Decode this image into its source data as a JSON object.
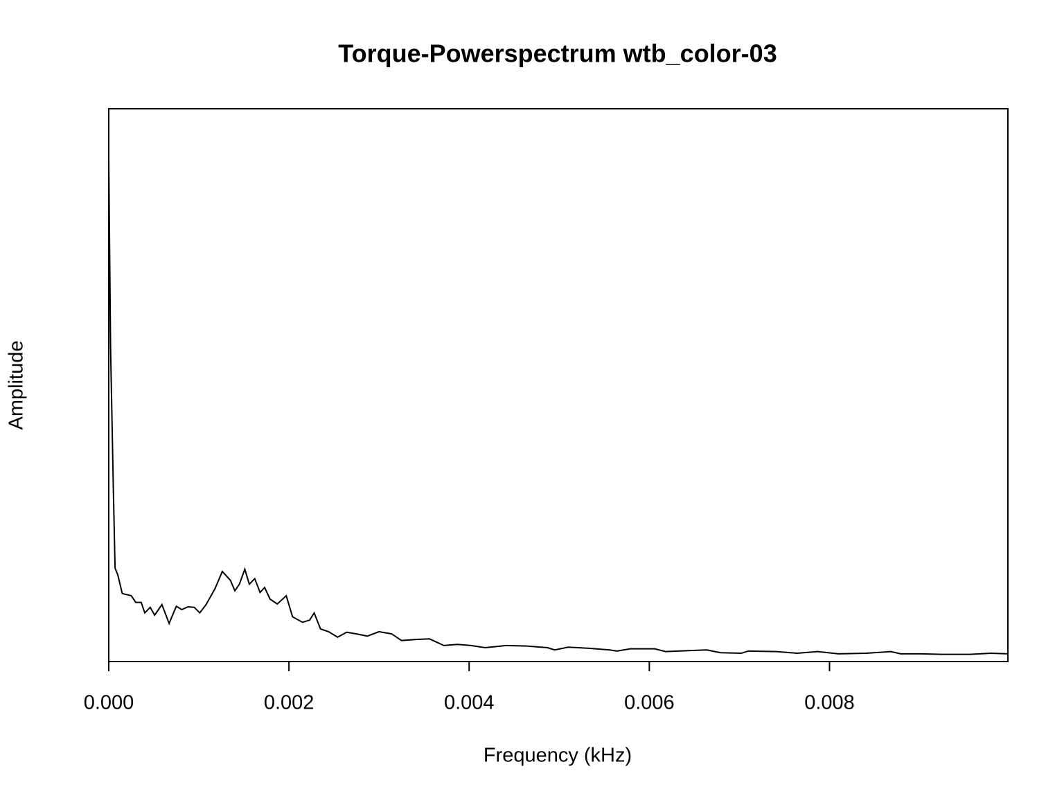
{
  "chart_data": {
    "type": "line",
    "title": "Torque-Powerspectrum wtb_color-03",
    "x_label": "Frequency (kHz)",
    "y_label": "Amplitude",
    "xlim": [
      0,
      0.00998
    ],
    "ylim": [
      0,
      1
    ],
    "xticks": [
      {
        "value": 0,
        "label": "0.000"
      },
      {
        "value": 0.002,
        "label": "0.002"
      },
      {
        "value": 0.004,
        "label": "0.004"
      },
      {
        "value": 0.006,
        "label": "0.006"
      },
      {
        "value": 0.008,
        "label": "0.008"
      }
    ],
    "series": [
      {
        "color": "#000000",
        "x": [
          0,
          2e-05,
          5e-05,
          7e-05,
          0.0001,
          0.00015,
          0.00025,
          0.0003,
          0.00036,
          0.0004,
          0.00046,
          0.00051,
          0.00059,
          0.00067,
          0.00075,
          0.00081,
          0.00088,
          0.00095,
          0.00101,
          0.00108,
          0.00118,
          0.00126,
          0.00135,
          0.0014,
          0.00145,
          0.00151,
          0.00156,
          0.00162,
          0.00168,
          0.00173,
          0.00179,
          0.00187,
          0.00197,
          0.00204,
          0.00215,
          0.00223,
          0.00228,
          0.00235,
          0.00244,
          0.00254,
          0.00264,
          0.00275,
          0.00287,
          0.003,
          0.00314,
          0.00325,
          0.00341,
          0.00356,
          0.00372,
          0.00387,
          0.00402,
          0.00418,
          0.00441,
          0.00464,
          0.00487,
          0.00495,
          0.0051,
          0.00533,
          0.00556,
          0.00564,
          0.00579,
          0.00606,
          0.00618,
          0.00648,
          0.00664,
          0.00679,
          0.00702,
          0.0071,
          0.00741,
          0.00764,
          0.00787,
          0.0081,
          0.00841,
          0.00868,
          0.00879,
          0.00902,
          0.00925,
          0.00956,
          0.00979,
          0.00998
        ],
        "values": [
          0.909,
          0.57,
          0.32,
          0.169,
          0.157,
          0.123,
          0.119,
          0.107,
          0.107,
          0.088,
          0.098,
          0.084,
          0.103,
          0.069,
          0.1,
          0.094,
          0.099,
          0.098,
          0.088,
          0.103,
          0.132,
          0.163,
          0.147,
          0.128,
          0.14,
          0.167,
          0.14,
          0.15,
          0.125,
          0.134,
          0.113,
          0.104,
          0.119,
          0.081,
          0.071,
          0.075,
          0.088,
          0.059,
          0.054,
          0.044,
          0.053,
          0.05,
          0.046,
          0.054,
          0.05,
          0.038,
          0.04,
          0.041,
          0.029,
          0.031,
          0.029,
          0.025,
          0.029,
          0.028,
          0.025,
          0.021,
          0.026,
          0.024,
          0.021,
          0.019,
          0.023,
          0.023,
          0.018,
          0.02,
          0.021,
          0.016,
          0.015,
          0.019,
          0.018,
          0.015,
          0.018,
          0.014,
          0.015,
          0.018,
          0.014,
          0.014,
          0.013,
          0.013,
          0.015,
          0.014
        ]
      }
    ]
  }
}
